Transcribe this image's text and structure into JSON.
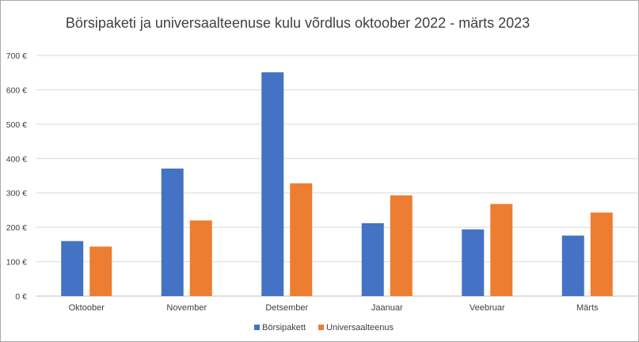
{
  "chart_data": {
    "type": "bar",
    "title": "Börsipaketi ja universaalteenuse kulu võrdlus oktoober 2022 - märts 2023",
    "categories": [
      "Oktoober",
      "November",
      "Detsember",
      "Jaanuar",
      "Veebruar",
      "Märts"
    ],
    "series": [
      {
        "name": "Börsipakett",
        "color": "#4472C4",
        "values": [
          160,
          371,
          651,
          212,
          194,
          176
        ]
      },
      {
        "name": "Universaalteenus",
        "color": "#ED7D31",
        "values": [
          144,
          220,
          328,
          293,
          268,
          243
        ]
      }
    ],
    "ylim": [
      0,
      700
    ],
    "yticks": [
      0,
      100,
      200,
      300,
      400,
      500,
      600,
      700
    ],
    "ytick_labels": [
      "0 €",
      "100 €",
      "200 €",
      "300 €",
      "400 €",
      "500 €",
      "600 €",
      "700 €"
    ],
    "grid": true,
    "legend_position": "bottom"
  }
}
